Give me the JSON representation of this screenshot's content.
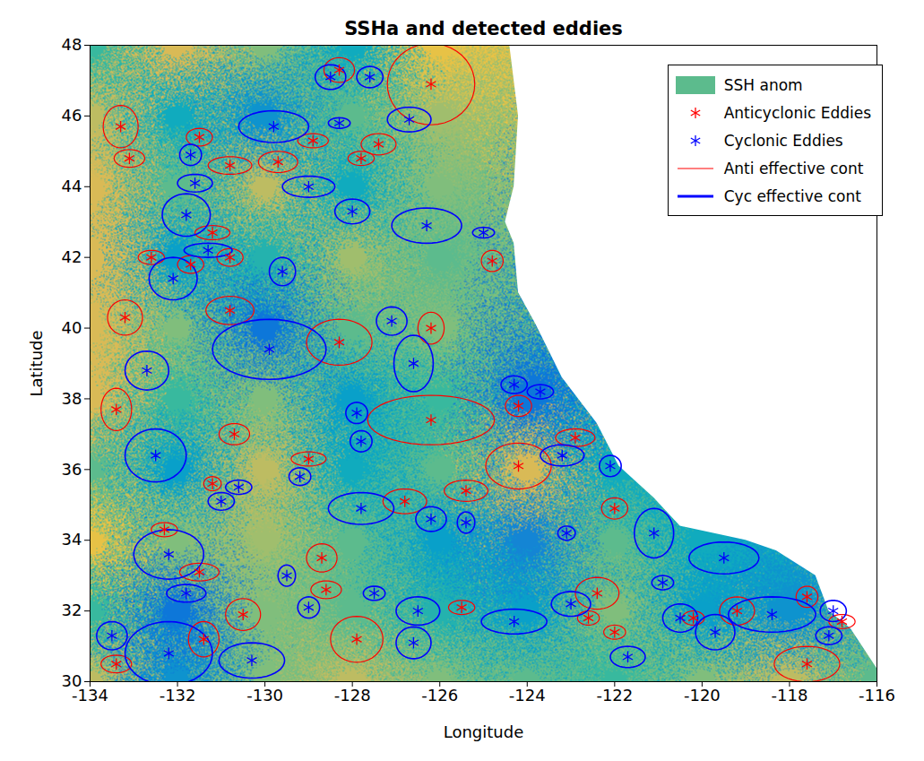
{
  "chart_data": {
    "type": "map",
    "title": "SSHa and detected eddies",
    "x_label": "Longitude",
    "y_label": "Latitude",
    "xlim": [
      -134,
      -116
    ],
    "ylim": [
      30,
      48
    ],
    "xticks": [
      -134,
      -132,
      -130,
      -128,
      -126,
      -124,
      -122,
      -120,
      -118,
      -116
    ],
    "yticks": [
      30,
      32,
      34,
      36,
      38,
      40,
      42,
      44,
      46,
      48
    ],
    "legend": "northeast",
    "ssha": {
      "name": "SSH anom",
      "clim": [
        -10,
        10
      ],
      "x": [
        -134,
        -132,
        -130,
        -128,
        -126,
        -124,
        -122,
        -120,
        -118,
        -116
      ],
      "y": [
        48,
        46,
        44,
        42,
        40,
        38,
        36,
        34,
        32,
        30
      ],
      "values": [
        [
          0,
          5,
          2,
          -2,
          6,
          null,
          null,
          null,
          null,
          null
        ],
        [
          4,
          -2,
          -4,
          1,
          3,
          null,
          null,
          null,
          null,
          null
        ],
        [
          5,
          1,
          4,
          -2,
          2,
          null,
          null,
          null,
          null,
          null
        ],
        [
          5,
          -3,
          -1,
          3,
          1,
          null,
          null,
          null,
          null,
          null
        ],
        [
          5,
          2,
          -6,
          1,
          2,
          null,
          null,
          null,
          null,
          null
        ],
        [
          5,
          0,
          2,
          -3,
          0,
          -6,
          null,
          null,
          null,
          null
        ],
        [
          1,
          -3,
          4,
          -2,
          1,
          5,
          -2,
          null,
          null,
          null
        ],
        [
          6,
          2,
          3,
          1,
          -3,
          -5,
          1,
          -2,
          null,
          null
        ],
        [
          0,
          -6,
          2,
          1,
          -1,
          -3,
          2,
          -3,
          -4,
          null
        ],
        [
          4,
          -4,
          2,
          4,
          2,
          1,
          0,
          2,
          4,
          1
        ]
      ]
    },
    "coast": {
      "x": [
        -124.4,
        -124.2,
        -124.3,
        -124.5,
        -124.3,
        -124.2,
        -123.8,
        -123.2,
        -122.4,
        -121.9,
        -121.1,
        -120.5,
        -119,
        -118.3,
        -117.4,
        -117.1,
        -116.6,
        -115.8
      ],
      "y": [
        48,
        46,
        44,
        43,
        42.4,
        41,
        40.1,
        38.6,
        37.3,
        36.1,
        35.2,
        34.4,
        34,
        33.7,
        33,
        32,
        31.5,
        30
      ]
    },
    "series": [
      {
        "name": "Anticyclonic Eddies",
        "contour_name": "Anti effective cont",
        "color": "#ff0000",
        "marker": "asterisk",
        "line_style": "solid",
        "x": [
          -126.2,
          -128.3,
          -133.3,
          -133.1,
          -131.5,
          -130.8,
          -129.7,
          -128.9,
          -127.4,
          -127.8,
          -132.6,
          -131.7,
          -131.2,
          -130.8,
          -124.8,
          -133.2,
          -130.8,
          -128.3,
          -126.2,
          -133.4,
          -130.7,
          -126.2,
          -124.2,
          -122.9,
          -124.2,
          -129.0,
          -131.2,
          -125.4,
          -126.8,
          -122.0,
          -132.3,
          -131.5,
          -128.7,
          -128.6,
          -122.4,
          -125.5,
          -130.5,
          -131.4,
          -127.9,
          -133.4,
          -122.6,
          -122.0,
          -120.2,
          -119.2,
          -117.6,
          -117.6,
          -116.8
        ],
        "y": [
          46.9,
          47.3,
          45.7,
          44.8,
          45.4,
          44.6,
          44.7,
          45.3,
          45.2,
          44.8,
          42.0,
          41.8,
          42.7,
          42.0,
          41.9,
          40.3,
          40.5,
          39.6,
          40.0,
          37.7,
          37.0,
          37.4,
          37.8,
          36.9,
          36.1,
          36.3,
          35.6,
          35.4,
          35.1,
          34.9,
          34.3,
          33.1,
          33.5,
          32.6,
          32.5,
          32.1,
          31.9,
          31.2,
          31.2,
          30.5,
          31.8,
          31.4,
          31.8,
          32.0,
          32.4,
          30.5,
          31.7
        ],
        "x_radius": [
          1.0,
          0.35,
          0.4,
          0.35,
          0.3,
          0.5,
          0.45,
          0.35,
          0.4,
          0.3,
          0.3,
          0.3,
          0.4,
          0.3,
          0.25,
          0.4,
          0.55,
          0.75,
          0.3,
          0.35,
          0.35,
          1.45,
          0.3,
          0.45,
          0.75,
          0.4,
          0.2,
          0.5,
          0.5,
          0.3,
          0.3,
          0.45,
          0.35,
          0.35,
          0.5,
          0.3,
          0.4,
          0.35,
          0.6,
          0.35,
          0.25,
          0.25,
          0.25,
          0.4,
          0.25,
          0.75,
          0.3
        ],
        "y_radius": [
          1.15,
          0.35,
          0.6,
          0.25,
          0.25,
          0.25,
          0.3,
          0.2,
          0.3,
          0.2,
          0.2,
          0.25,
          0.2,
          0.25,
          0.3,
          0.5,
          0.4,
          0.65,
          0.45,
          0.6,
          0.3,
          0.7,
          0.3,
          0.25,
          0.65,
          0.2,
          0.2,
          0.3,
          0.35,
          0.3,
          0.2,
          0.25,
          0.4,
          0.25,
          0.45,
          0.2,
          0.45,
          0.5,
          0.65,
          0.25,
          0.2,
          0.2,
          0.2,
          0.4,
          0.3,
          0.5,
          0.2
        ]
      },
      {
        "name": "Cyclonic Eddies",
        "contour_name": "Cyc effective cont",
        "color": "#0000ff",
        "marker": "asterisk",
        "line_style": "solid",
        "x": [
          -128.5,
          -127.6,
          -129.8,
          -128.3,
          -126.7,
          -131.7,
          -131.6,
          -129.0,
          -131.8,
          -128.0,
          -126.3,
          -125.0,
          -131.3,
          -132.1,
          -129.6,
          -129.9,
          -127.1,
          -126.6,
          -132.7,
          -124.3,
          -123.7,
          -127.9,
          -127.8,
          -132.5,
          -123.2,
          -122.1,
          -129.2,
          -130.6,
          -131.0,
          -127.8,
          -126.2,
          -125.4,
          -123.1,
          -121.1,
          -119.5,
          -132.2,
          -129.5,
          -131.8,
          -127.5,
          -129.0,
          -126.5,
          -124.3,
          -123.0,
          -120.9,
          -126.6,
          -133.5,
          -132.2,
          -130.3,
          -121.7,
          -120.5,
          -119.7,
          -118.4,
          -117.0,
          -117.1
        ],
        "y": [
          47.1,
          47.1,
          45.7,
          45.8,
          45.9,
          44.9,
          44.1,
          44.0,
          43.2,
          43.3,
          42.9,
          42.7,
          42.2,
          41.4,
          41.6,
          39.4,
          40.2,
          39.0,
          38.8,
          38.4,
          38.2,
          37.6,
          36.8,
          36.4,
          36.4,
          36.1,
          35.8,
          35.5,
          35.1,
          34.9,
          34.6,
          34.5,
          34.2,
          34.2,
          33.5,
          33.6,
          33.0,
          32.5,
          32.5,
          32.1,
          32.0,
          31.7,
          32.2,
          32.8,
          31.1,
          31.3,
          30.8,
          30.6,
          30.7,
          31.8,
          31.4,
          31.9,
          32.0,
          31.3
        ],
        "x_radius": [
          0.35,
          0.3,
          0.8,
          0.25,
          0.5,
          0.25,
          0.4,
          0.6,
          0.55,
          0.4,
          0.8,
          0.25,
          0.55,
          0.55,
          0.3,
          1.3,
          0.35,
          0.45,
          0.5,
          0.3,
          0.3,
          0.25,
          0.25,
          0.7,
          0.5,
          0.25,
          0.25,
          0.3,
          0.3,
          0.75,
          0.35,
          0.2,
          0.2,
          0.45,
          0.8,
          0.8,
          0.2,
          0.45,
          0.25,
          0.25,
          0.5,
          0.75,
          0.45,
          0.25,
          0.4,
          0.35,
          1.0,
          0.75,
          0.4,
          0.4,
          0.45,
          1.0,
          0.3,
          0.3
        ],
        "y_radius": [
          0.35,
          0.3,
          0.45,
          0.15,
          0.35,
          0.3,
          0.25,
          0.3,
          0.6,
          0.35,
          0.5,
          0.15,
          0.2,
          0.6,
          0.4,
          0.85,
          0.4,
          0.8,
          0.55,
          0.25,
          0.2,
          0.3,
          0.3,
          0.75,
          0.3,
          0.3,
          0.25,
          0.2,
          0.25,
          0.45,
          0.35,
          0.3,
          0.2,
          0.7,
          0.45,
          0.7,
          0.3,
          0.25,
          0.2,
          0.3,
          0.4,
          0.35,
          0.35,
          0.2,
          0.45,
          0.4,
          0.9,
          0.5,
          0.3,
          0.4,
          0.5,
          0.5,
          0.3,
          0.25
        ]
      }
    ]
  }
}
